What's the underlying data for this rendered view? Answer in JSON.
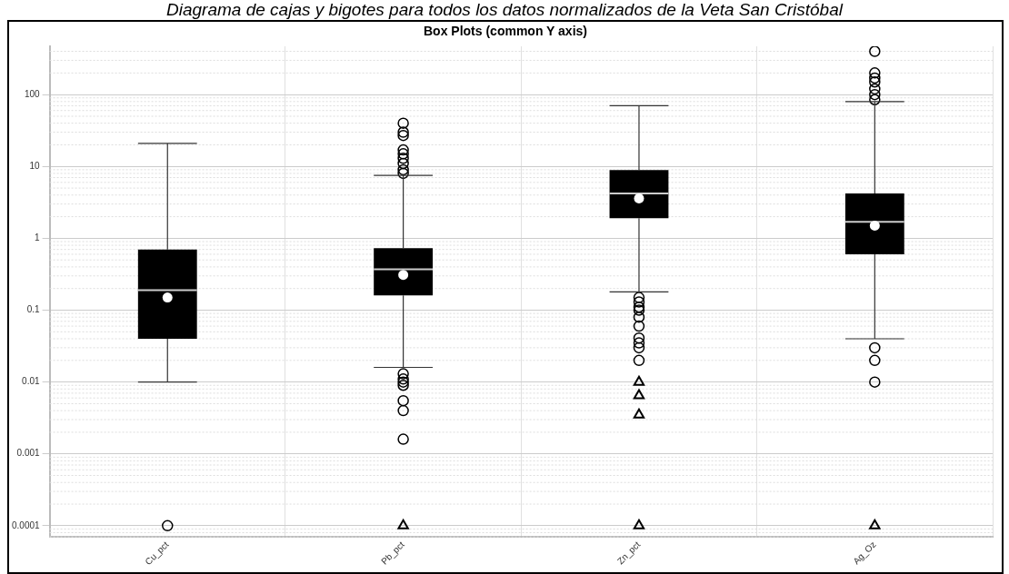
{
  "chart_data": {
    "type": "box",
    "title": "Diagrama de cajas y bigotes para todos los datos normalizados de la Veta San Cristóbal",
    "subtitle": "Box Plots (common Y axis)",
    "categories": [
      "Cu_pct",
      "Pb_pct",
      "Zn_pct",
      "Ag_Oz"
    ],
    "boxes": [
      {
        "low": 0.01,
        "q1": 0.04,
        "median": 0.19,
        "q3": 0.7,
        "high": 21,
        "mean": 0.15,
        "outliers": [
          0.0001
        ]
      },
      {
        "low": 0.016,
        "q1": 0.16,
        "median": 0.37,
        "q3": 0.73,
        "high": 7.5,
        "mean": 0.31,
        "outliers": [
          40,
          30,
          27,
          17,
          15,
          13,
          11,
          9,
          8,
          0.013,
          0.011,
          0.01,
          0.009,
          0.0055,
          0.004,
          0.0016
        ]
      },
      {
        "low": 0.18,
        "q1": 1.9,
        "median": 4.2,
        "q3": 8.9,
        "high": 70,
        "mean": 3.6,
        "outliers": [
          0.15,
          0.13,
          0.11,
          0.1,
          0.08,
          0.06,
          0.041,
          0.035,
          0.03,
          0.02
        ]
      },
      {
        "low": 0.04,
        "q1": 0.6,
        "median": 1.7,
        "q3": 4.2,
        "high": 80,
        "mean": 1.5,
        "outliers": [
          400,
          200,
          170,
          150,
          120,
          100,
          85,
          0.03,
          0.02,
          0.01
        ]
      }
    ],
    "series": [
      {
        "type": "scatter",
        "marker": "triangle",
        "color": "#000000",
        "x": [
          "Pb_pct",
          "Zn_pct",
          "Zn_pct",
          "Zn_pct",
          "Zn_pct",
          "Ag_Oz"
        ],
        "values": [
          0.0001,
          0.01,
          0.0065,
          0.0035,
          0.0001,
          0.0001
        ]
      }
    ],
    "log": "y",
    "ylim": [
      7.5e-05,
      470
    ],
    "yticks": [
      0.0001,
      0.001,
      0.01,
      0.1,
      1,
      10,
      100
    ],
    "grid": true,
    "legend": false
  }
}
